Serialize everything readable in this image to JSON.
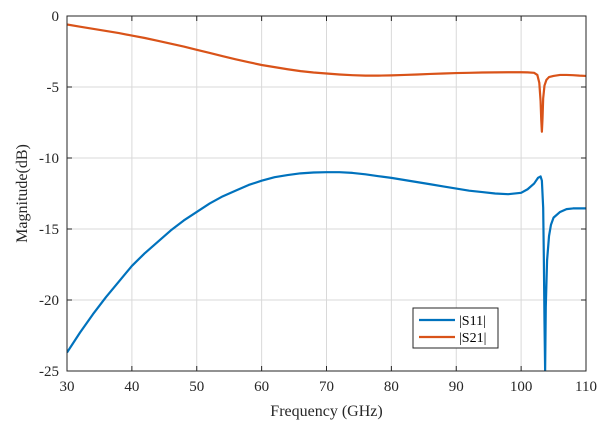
{
  "chart_data": {
    "type": "line",
    "title": "",
    "xlabel": "Frequency (GHz)",
    "ylabel": "Magnitude(dB)",
    "xlim": [
      30,
      110
    ],
    "ylim": [
      -25,
      0
    ],
    "xticks": [
      30,
      40,
      50,
      60,
      70,
      80,
      90,
      100,
      110
    ],
    "yticks": [
      0,
      -5,
      -10,
      -15,
      -20,
      -25
    ],
    "xtick_labels": [
      "30",
      "40",
      "50",
      "60",
      "70",
      "80",
      "90",
      "100",
      "110"
    ],
    "ytick_labels": [
      "0",
      "-5",
      "-10",
      "-15",
      "-20",
      "-25"
    ],
    "grid": true,
    "legend_position": "bottom-right",
    "series": [
      {
        "name": "|S11|",
        "color": "#0072bd",
        "x": [
          30,
          32,
          34,
          36,
          38,
          40,
          42,
          44,
          46,
          48,
          50,
          52,
          54,
          56,
          58,
          60,
          62,
          64,
          66,
          68,
          70,
          72,
          74,
          76,
          78,
          80,
          82,
          84,
          86,
          88,
          90,
          92,
          94,
          96,
          98,
          100,
          101,
          102,
          102.6,
          103.0,
          103.2,
          103.4,
          103.5,
          103.6,
          103.7,
          103.8,
          104.0,
          104.3,
          104.6,
          105,
          106,
          107,
          108,
          109,
          110
        ],
        "values": [
          -23.7,
          -22.3,
          -21.0,
          -19.8,
          -18.7,
          -17.6,
          -16.7,
          -15.9,
          -15.1,
          -14.4,
          -13.8,
          -13.2,
          -12.7,
          -12.3,
          -11.9,
          -11.6,
          -11.35,
          -11.2,
          -11.08,
          -11.02,
          -11.0,
          -11.0,
          -11.05,
          -11.15,
          -11.28,
          -11.4,
          -11.55,
          -11.7,
          -11.85,
          -12.0,
          -12.15,
          -12.3,
          -12.4,
          -12.5,
          -12.55,
          -12.45,
          -12.2,
          -11.8,
          -11.4,
          -11.3,
          -11.6,
          -13.5,
          -17.0,
          -21.5,
          -25.0,
          -20.5,
          -17.2,
          -15.5,
          -14.7,
          -14.2,
          -13.8,
          -13.6,
          -13.55,
          -13.55,
          -13.55
        ]
      },
      {
        "name": "|S21|",
        "color": "#d95319",
        "x": [
          30,
          32,
          34,
          36,
          38,
          40,
          42,
          44,
          46,
          48,
          50,
          52,
          54,
          56,
          58,
          60,
          62,
          64,
          66,
          68,
          70,
          72,
          74,
          76,
          78,
          80,
          82,
          84,
          86,
          88,
          90,
          92,
          94,
          96,
          98,
          100,
          101,
          102,
          102.5,
          102.8,
          103.0,
          103.1,
          103.2,
          103.3,
          103.4,
          103.6,
          103.9,
          104.3,
          105,
          106,
          107,
          108,
          109,
          110
        ],
        "values": [
          -0.6,
          -0.75,
          -0.9,
          -1.05,
          -1.2,
          -1.38,
          -1.55,
          -1.75,
          -1.95,
          -2.15,
          -2.38,
          -2.6,
          -2.83,
          -3.05,
          -3.25,
          -3.45,
          -3.6,
          -3.75,
          -3.88,
          -3.98,
          -4.05,
          -4.12,
          -4.17,
          -4.2,
          -4.2,
          -4.18,
          -4.15,
          -4.12,
          -4.08,
          -4.05,
          -4.02,
          -4.0,
          -3.98,
          -3.97,
          -3.96,
          -3.96,
          -3.97,
          -4.0,
          -4.15,
          -4.7,
          -6.0,
          -7.3,
          -8.15,
          -7.2,
          -5.8,
          -4.9,
          -4.5,
          -4.3,
          -4.22,
          -4.15,
          -4.15,
          -4.17,
          -4.2,
          -4.22
        ]
      }
    ]
  }
}
